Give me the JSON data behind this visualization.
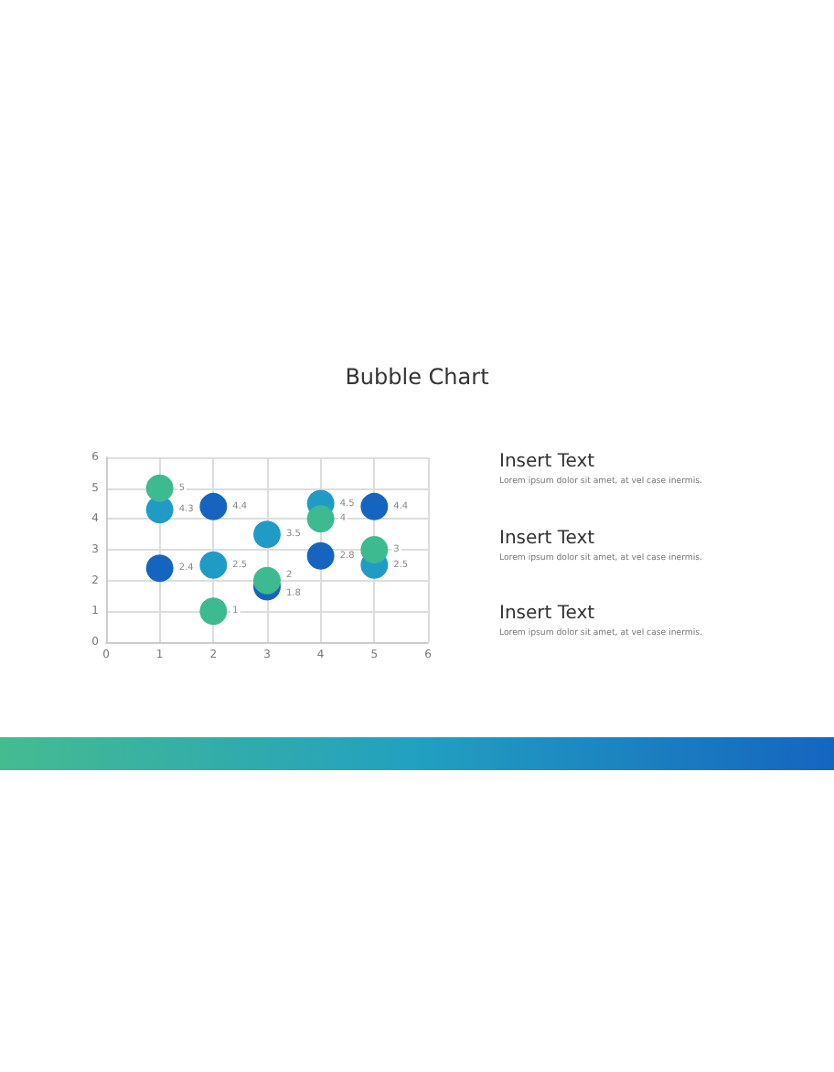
{
  "chart_data": [
    {
      "type": "bubble",
      "title": "Bubble Chart",
      "xlim": [
        0,
        6
      ],
      "xticks": [
        0,
        1,
        2,
        3,
        4,
        5,
        6
      ],
      "ylim": [
        0,
        6
      ],
      "yticks": [
        0,
        1,
        2,
        3,
        4,
        5,
        6
      ],
      "grid": true,
      "data_labels": true,
      "marker": "circle",
      "series": [
        {
          "color": "#1565c0",
          "x": [
            1,
            2,
            3,
            4,
            5
          ],
          "values": [
            2.4,
            4.4,
            1.8,
            2.8,
            4.4
          ],
          "sizes": [
            1,
            1,
            1,
            1,
            1
          ]
        },
        {
          "color": "#1f9bc6",
          "x": [
            1,
            2,
            3,
            4,
            5
          ],
          "values": [
            4.3,
            2.5,
            3.5,
            4.5,
            2.5
          ],
          "sizes": [
            1,
            1,
            1,
            1,
            1
          ]
        },
        {
          "color": "#3dba8f",
          "x": [
            1,
            2,
            3,
            4,
            5
          ],
          "values": [
            5,
            1,
            2,
            4,
            3
          ],
          "sizes": [
            1,
            1,
            1,
            1,
            1
          ]
        }
      ]
    },
    {
      "type": "other",
      "annotations": [
        "Insert Text",
        "Lorem ipsum dolor sit amet, at vel case inermis.",
        "Insert Text",
        "Lorem ipsum dolor sit amet, at vel case inermis.",
        "Insert Text",
        "Lorem ipsum dolor sit amet, at vel case inermis."
      ]
    }
  ]
}
